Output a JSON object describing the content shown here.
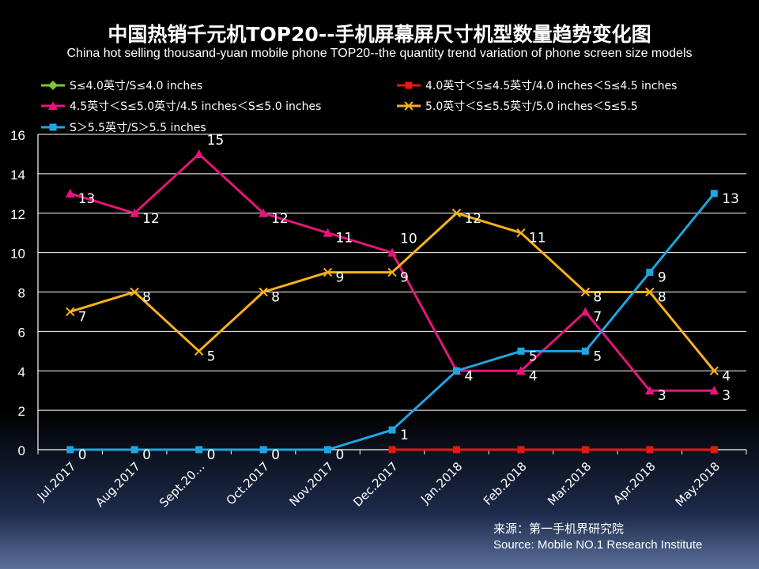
{
  "chart_data": {
    "type": "line",
    "title": "中国热销千元机TOP20--手机屏幕屏尺寸机型数量趋势变化图",
    "subtitle": "China hot selling thousand-yuan mobile phone TOP20--the quantity trend variation of phone screen size models",
    "categories": [
      "Jul.2017",
      "Aug.2017",
      "Sept.20…",
      "Oct.2017",
      "Nov.2017",
      "Dec.2017",
      "Jan.2018",
      "Feb.2018",
      "Mar.2018",
      "Apr.2018",
      "May.2018"
    ],
    "ylim": [
      0,
      16
    ],
    "yticks": [
      0,
      2,
      4,
      6,
      8,
      10,
      12,
      14,
      16
    ],
    "grid": true,
    "legend_position": "top",
    "series": [
      {
        "name": "S≤4.0英寸/S≤4.0 inches",
        "color": "#7ec636",
        "marker": "diamond",
        "values": [
          null,
          null,
          null,
          null,
          null,
          null,
          null,
          null,
          null,
          null,
          null
        ],
        "labels": false
      },
      {
        "name": "4.0英寸＜S≤4.5英寸/4.0 inches＜S≤4.5 inches",
        "color": "#e8170f",
        "marker": "square",
        "values": [
          null,
          null,
          null,
          null,
          null,
          0,
          0,
          0,
          0,
          0,
          0
        ],
        "labels": false
      },
      {
        "name": "4.5英寸＜S≤5.0英寸/4.5 inches＜S≤5.0 inches",
        "color": "#e5157a",
        "marker": "triangle",
        "values": [
          13,
          12,
          15,
          12,
          11,
          10,
          4,
          4,
          7,
          3,
          3
        ],
        "labels": true
      },
      {
        "name": "5.0英寸＜S≤5.5英寸/5.0 inches＜S≤5.5",
        "color": "#f7b21b",
        "marker": "x",
        "values": [
          7,
          8,
          5,
          8,
          9,
          9,
          12,
          11,
          8,
          8,
          4
        ],
        "labels": true
      },
      {
        "name": "S＞5.5英寸/S＞5.5 inches",
        "color": "#1fa5e3",
        "marker": "square",
        "values": [
          0,
          0,
          0,
          0,
          0,
          1,
          4,
          5,
          5,
          9,
          13
        ],
        "labels": true
      }
    ]
  },
  "source": {
    "cn": "来源：第一手机界研究院",
    "en": "Source: Mobile NO.1 Research Institute"
  }
}
